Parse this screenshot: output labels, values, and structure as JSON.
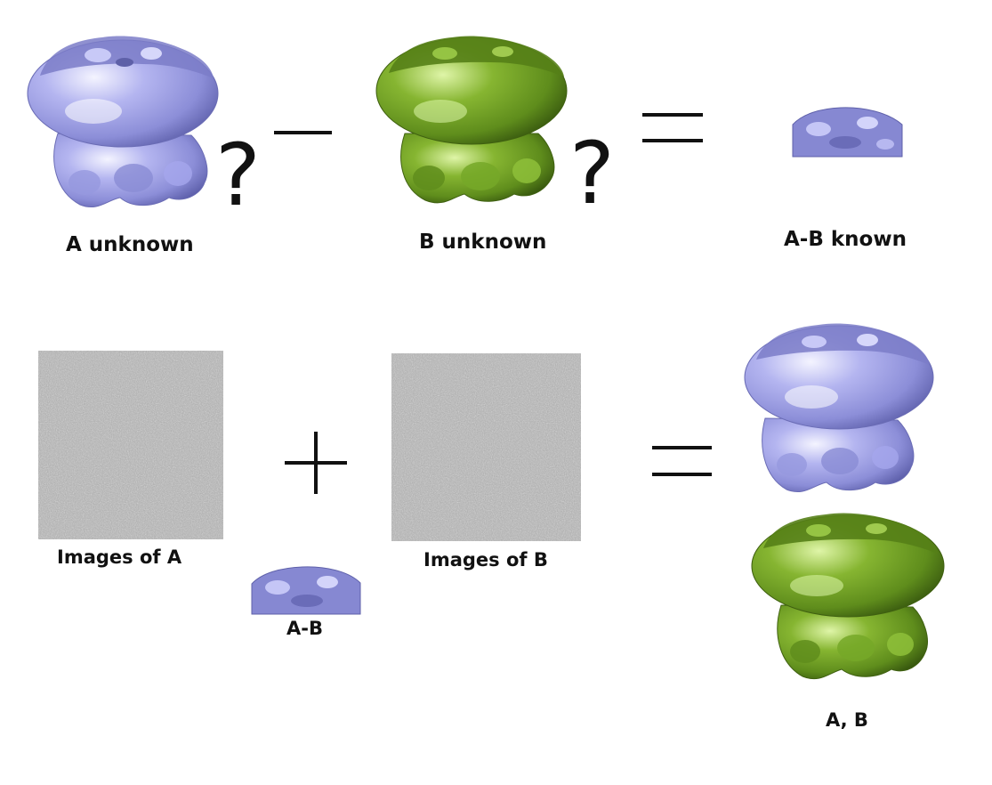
{
  "labels": {
    "a_unknown": "A unknown",
    "b_unknown": "B unknown",
    "ab_known": "A-B known",
    "images_of_a": "Images of A",
    "images_of_b": "Images of B",
    "ab": "A-B",
    "a_b": "A, B"
  },
  "symbols": {
    "question_mark": "?"
  },
  "colors": {
    "structure_a": "#a3a4e6",
    "structure_b": "#6f9a22",
    "noise_gray": "#a9a9a9",
    "ink": "#111111"
  }
}
